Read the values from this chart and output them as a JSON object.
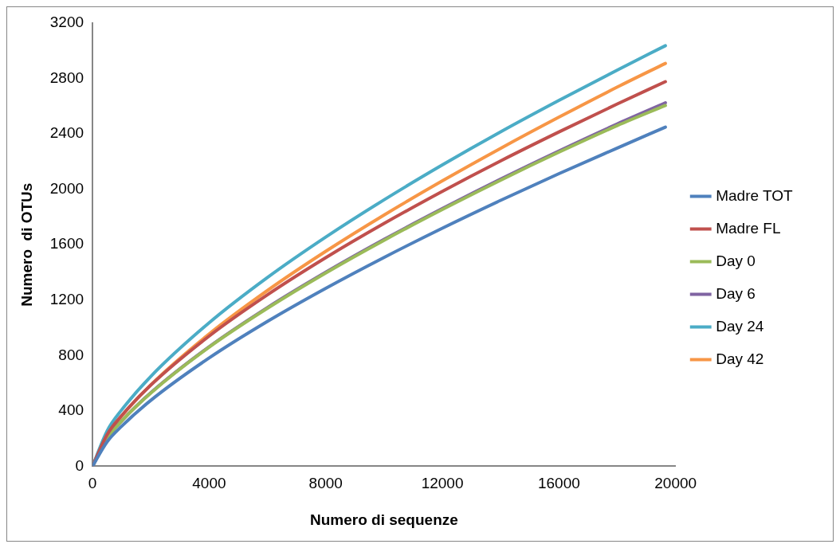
{
  "chart_data": {
    "type": "line",
    "xlabel": "Numero di sequenze",
    "ylabel": "Numero  di OTUs",
    "x": [
      0,
      500,
      1000,
      2000,
      4000,
      6000,
      8000,
      10000,
      12000,
      14000,
      16000,
      18000,
      19650
    ],
    "series": [
      {
        "name": "Madre TOT",
        "color": "#4f81bd",
        "values": [
          0,
          176,
          289,
          476,
          782,
          1046,
          1285,
          1508,
          1719,
          1920,
          2113,
          2298,
          2449
        ]
      },
      {
        "name": "Madre FL",
        "color": "#c0504d",
        "values": [
          0,
          228,
          366,
          586,
          940,
          1238,
          1506,
          1753,
          1985,
          2205,
          2414,
          2616,
          2777
        ]
      },
      {
        "name": "Day 0",
        "color": "#9bbb59",
        "values": [
          0,
          200,
          326,
          529,
          860,
          1141,
          1396,
          1632,
          1854,
          2066,
          2268,
          2460,
          2605
        ]
      },
      {
        "name": "Day 6",
        "color": "#8064a2",
        "values": [
          0,
          201,
          327,
          531,
          863,
          1146,
          1401,
          1638,
          1861,
          2074,
          2277,
          2472,
          2624
        ]
      },
      {
        "name": "Day 24",
        "color": "#4bacc6",
        "values": [
          0,
          255,
          407,
          649,
          1036,
          1363,
          1655,
          1924,
          2176,
          2415,
          2642,
          2861,
          3037
        ]
      },
      {
        "name": "Day 42",
        "color": "#f79646",
        "values": [
          0,
          223,
          362,
          588,
          955,
          1269,
          1552,
          1814,
          2061,
          2296,
          2521,
          2738,
          2909
        ]
      }
    ],
    "xlim": [
      0,
      20000
    ],
    "xticks": [
      0,
      4000,
      8000,
      12000,
      16000,
      20000
    ],
    "ylim": [
      0,
      3200
    ],
    "yticks": [
      0,
      400,
      800,
      1200,
      1600,
      2000,
      2400,
      2800,
      3200
    ],
    "grid": false,
    "legend": "right",
    "marker": "none",
    "line_style": "solid"
  }
}
